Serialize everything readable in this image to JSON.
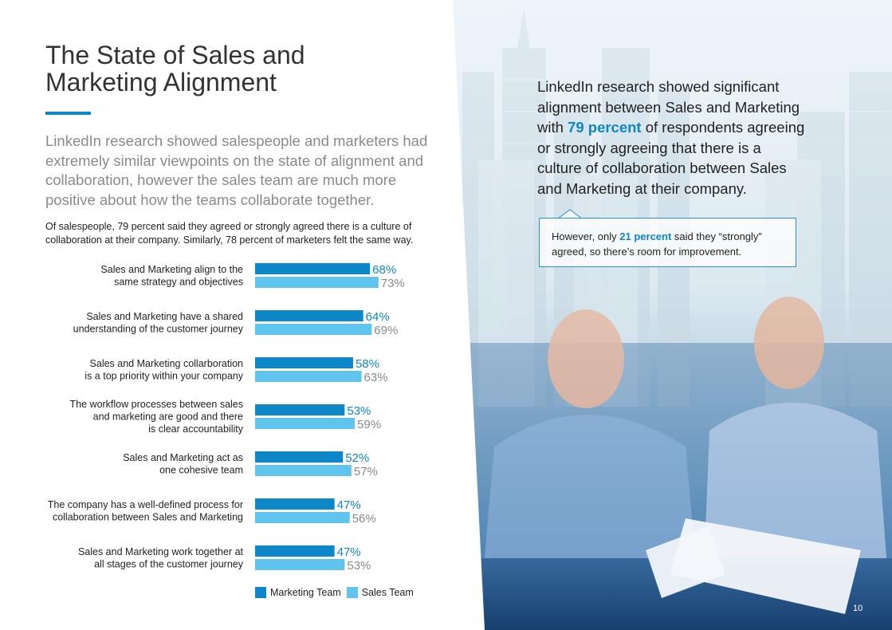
{
  "title_line1": "The State of Sales and",
  "title_line2": "Marketing Alignment",
  "intro": "LinkedIn research showed salespeople and marketers had extremely similar viewpoints on the state of alignment and collaboration, however the sales team are much more positive about how the teams collaborate together.",
  "body": "Of salespeople, 79 percent said they agreed or strongly agreed there is a culture of collaboration at their company. Similarly, 78 percent of marketers felt the same way.",
  "quote": {
    "before": "LinkedIn research showed significant alignment between Sales and Marketing with ",
    "highlight": "79 percent",
    "after": " of respondents agreeing or strongly agreeing that there is a culture of collaboration between Sales and Marketing at their company."
  },
  "callout": {
    "before": "However, only ",
    "highlight": "21 percent",
    "after": " said they “strongly” agreed, so there’s room for improvement."
  },
  "page_number": "10",
  "colors": {
    "marketing": "#0e87c8",
    "sales": "#5fc4ee",
    "accent": "#0e87c8"
  },
  "chart_data": {
    "type": "bar",
    "orientation": "horizontal",
    "categories": [
      [
        "Sales and Marketing align to the",
        "same strategy and objectives"
      ],
      [
        "Sales and Marketing have a shared",
        "understanding of the customer journey"
      ],
      [
        "Sales and Marketing collarboration",
        "is a top priority within your company"
      ],
      [
        "The workflow processes between sales",
        "and marketing are good and there",
        "is clear accountability"
      ],
      [
        "Sales and Marketing act as",
        "one cohesive team"
      ],
      [
        "The company has a well-defined process for",
        "collaboration between Sales and Marketing"
      ],
      [
        "Sales and Marketing work together at",
        "all stages of the customer journey"
      ]
    ],
    "series": [
      {
        "name": "Marketing Team",
        "values": [
          68,
          64,
          58,
          53,
          52,
          47,
          47
        ]
      },
      {
        "name": "Sales Team",
        "values": [
          73,
          69,
          63,
          59,
          57,
          56,
          53
        ]
      }
    ],
    "value_suffix": "%",
    "legend_position": "bottom"
  }
}
